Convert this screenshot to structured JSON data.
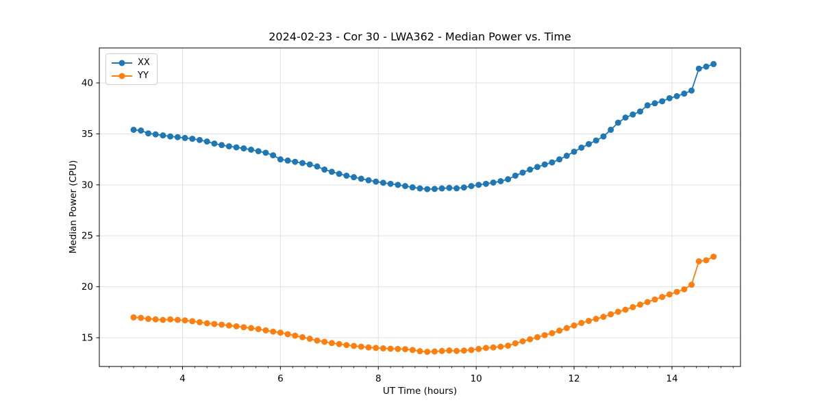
{
  "chart": {
    "title": "2024-02-23 - Cor 30 - LWA362 - Median Power vs. Time",
    "xlabel": "UT Time (hours)",
    "ylabel": "Median Power (CPU)"
  },
  "chart_data": {
    "type": "line",
    "title": "2024-02-23 - Cor 30 - LWA362 - Median Power vs. Time",
    "xlabel": "UT Time (hours)",
    "ylabel": "Median Power (CPU)",
    "xlim": [
      2.3,
      15.4
    ],
    "ylim": [
      12.18,
      43.43
    ],
    "x_major_ticks": [
      4,
      6,
      8,
      10,
      12,
      14
    ],
    "x_minor_tick_step": 0.25,
    "y_major_ticks": [
      15,
      20,
      25,
      30,
      35,
      40
    ],
    "grid": true,
    "grid_color": "#e0e0e0",
    "legend_position": "upper-left",
    "marker": "circle",
    "x": [
      3.0,
      3.15,
      3.3,
      3.45,
      3.6,
      3.75,
      3.9,
      4.05,
      4.2,
      4.35,
      4.5,
      4.65,
      4.8,
      4.95,
      5.1,
      5.25,
      5.4,
      5.55,
      5.7,
      5.85,
      6.0,
      6.15,
      6.3,
      6.45,
      6.6,
      6.75,
      6.9,
      7.05,
      7.2,
      7.35,
      7.5,
      7.65,
      7.8,
      7.95,
      8.1,
      8.25,
      8.4,
      8.55,
      8.7,
      8.85,
      9.0,
      9.15,
      9.3,
      9.45,
      9.6,
      9.75,
      9.9,
      10.05,
      10.2,
      10.35,
      10.5,
      10.65,
      10.8,
      10.95,
      11.1,
      11.25,
      11.4,
      11.55,
      11.7,
      11.85,
      12.0,
      12.15,
      12.3,
      12.45,
      12.6,
      12.75,
      12.9,
      13.05,
      13.2,
      13.35,
      13.5,
      13.65,
      13.8,
      13.95,
      14.1,
      14.25,
      14.4,
      14.55,
      14.7,
      14.85
    ],
    "series": [
      {
        "name": "XX",
        "color": "#1f77b4",
        "values": [
          35.4,
          35.33,
          35.05,
          34.95,
          34.85,
          34.75,
          34.68,
          34.6,
          34.52,
          34.4,
          34.25,
          34.05,
          33.9,
          33.78,
          33.68,
          33.58,
          33.45,
          33.3,
          33.15,
          32.9,
          32.5,
          32.38,
          32.26,
          32.14,
          32.0,
          31.8,
          31.5,
          31.28,
          31.08,
          30.9,
          30.75,
          30.6,
          30.45,
          30.32,
          30.2,
          30.1,
          30.0,
          29.88,
          29.75,
          29.65,
          29.58,
          29.6,
          29.65,
          29.7,
          29.66,
          29.74,
          29.88,
          30.0,
          30.1,
          30.22,
          30.36,
          30.55,
          30.9,
          31.2,
          31.5,
          31.75,
          32.0,
          32.2,
          32.5,
          32.85,
          33.25,
          33.65,
          34.0,
          34.35,
          34.75,
          35.4,
          36.1,
          36.6,
          36.9,
          37.2,
          37.8,
          38.0,
          38.2,
          38.5,
          38.7,
          38.95,
          39.25,
          41.4,
          41.6,
          41.85
        ]
      },
      {
        "name": "YY",
        "color": "#ff7f0e",
        "values": [
          17.0,
          16.95,
          16.85,
          16.8,
          16.75,
          16.8,
          16.75,
          16.7,
          16.62,
          16.52,
          16.42,
          16.35,
          16.28,
          16.2,
          16.12,
          16.03,
          15.95,
          15.85,
          15.72,
          15.6,
          15.5,
          15.35,
          15.2,
          15.05,
          14.9,
          14.72,
          14.6,
          14.48,
          14.38,
          14.28,
          14.2,
          14.12,
          14.05,
          14.0,
          13.96,
          13.92,
          13.9,
          13.88,
          13.8,
          13.68,
          13.62,
          13.65,
          13.7,
          13.75,
          13.7,
          13.74,
          13.8,
          13.9,
          14.0,
          14.05,
          14.12,
          14.22,
          14.45,
          14.65,
          14.85,
          15.05,
          15.25,
          15.45,
          15.7,
          15.95,
          16.2,
          16.45,
          16.65,
          16.85,
          17.05,
          17.3,
          17.55,
          17.75,
          18.0,
          18.25,
          18.5,
          18.75,
          19.0,
          19.25,
          19.5,
          19.75,
          20.2,
          22.5,
          22.6,
          22.95
        ]
      }
    ]
  }
}
